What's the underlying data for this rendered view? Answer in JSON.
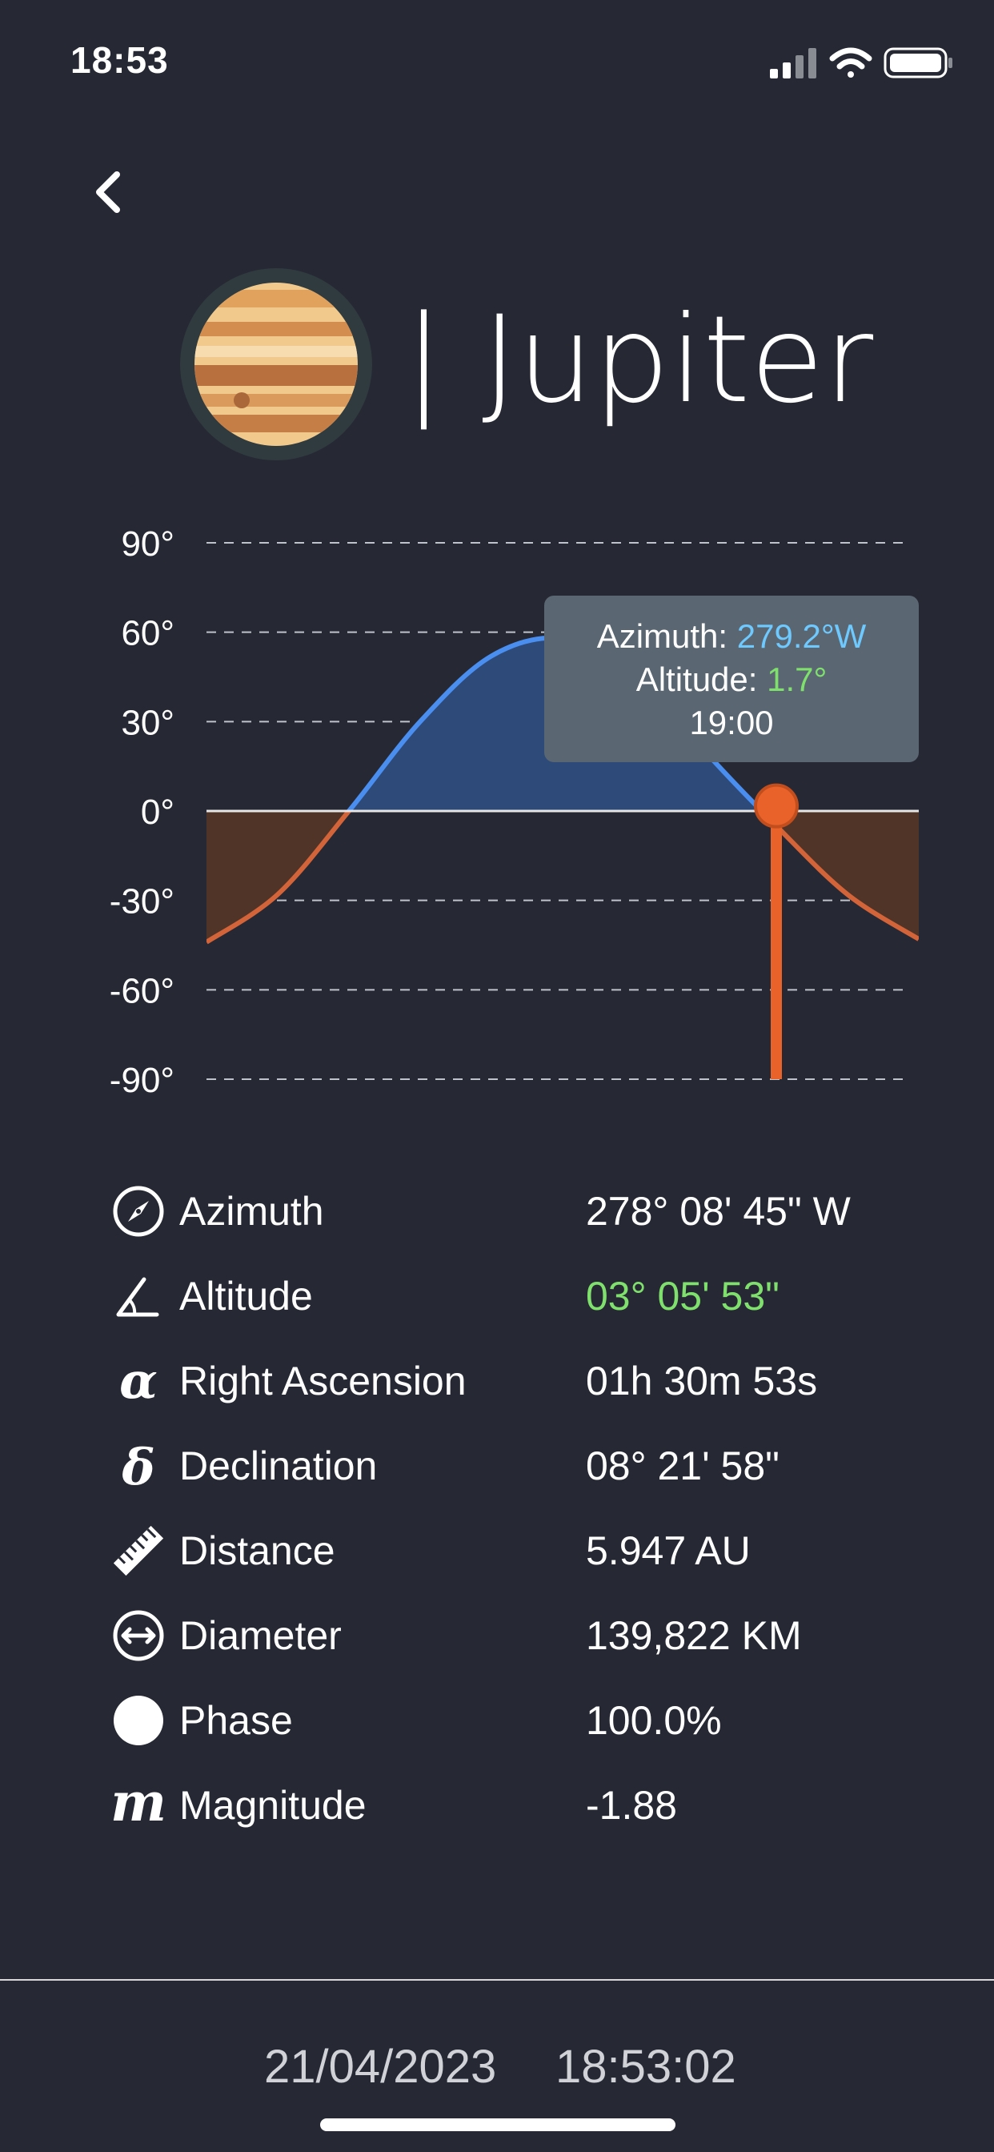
{
  "status_bar": {
    "time": "18:53"
  },
  "header": {
    "title": "| Jupiter",
    "planet_icon": "jupiter-icon"
  },
  "chart_data": {
    "type": "area",
    "y_ticks": [
      "90°",
      "60°",
      "30°",
      "0°",
      "-30°",
      "-60°",
      "-90°"
    ],
    "ylim": [
      -90,
      90
    ],
    "grid": "dashed-horizontal",
    "series": [
      {
        "values": [
          -44,
          -28,
          0,
          30,
          52,
          58,
          48,
          20,
          -5,
          -28,
          -43
        ]
      }
    ],
    "current_marker": {
      "altitude": 1.7,
      "position_fraction": 0.8
    },
    "colors": {
      "above_horizon": "#2d4a78",
      "below_horizon": "#503428",
      "curve_above": "#4a8ef0",
      "curve_below": "#d3643a",
      "marker": "#e8622a"
    }
  },
  "tooltip": {
    "azimuth_label": "Azimuth: ",
    "azimuth_value": "279.2°W",
    "altitude_label": "Altitude: ",
    "altitude_value": "1.7°",
    "time": "19:00"
  },
  "details": [
    {
      "icon": "compass-icon",
      "label": "Azimuth",
      "value": "278° 08' 45\" W"
    },
    {
      "icon": "angle-icon",
      "label": "Altitude",
      "value": "03° 05' 53\"",
      "color": "#7fe06d"
    },
    {
      "icon": "alpha-icon",
      "label": "Right Ascension",
      "value": "01h 30m 53s",
      "glyph": "α"
    },
    {
      "icon": "delta-icon",
      "label": "Declination",
      "value": "08° 21' 58\"",
      "glyph": "δ"
    },
    {
      "icon": "ruler-icon",
      "label": "Distance",
      "value": "5.947 AU"
    },
    {
      "icon": "diameter-icon",
      "label": "Diameter",
      "value": "139,822 KM"
    },
    {
      "icon": "phase-icon",
      "label": "Phase",
      "value": "100.0%"
    },
    {
      "icon": "magnitude-icon",
      "label": "Magnitude",
      "value": "-1.88",
      "glyph": "m"
    }
  ],
  "footer": {
    "date": "21/04/2023",
    "time": "18:53:02"
  }
}
